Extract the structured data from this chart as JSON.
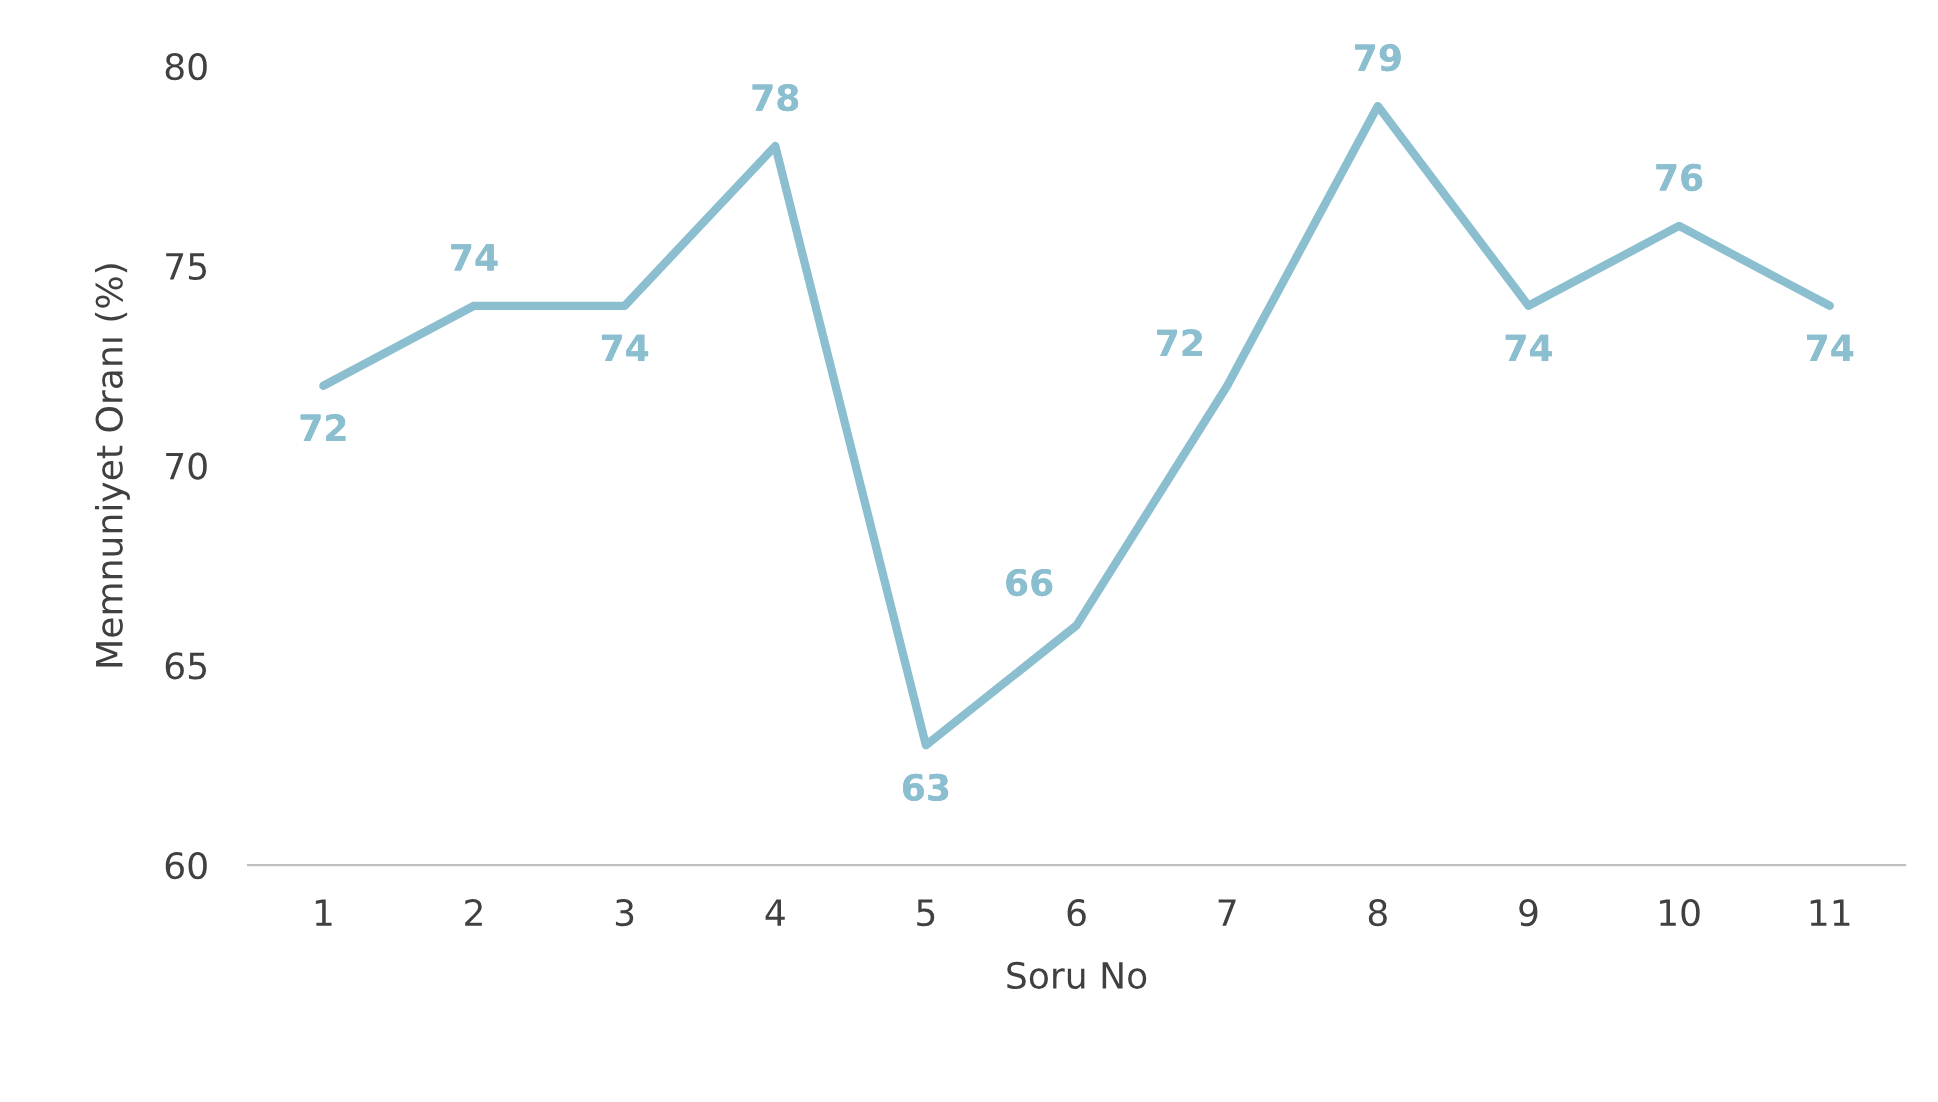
{
  "chart_data": {
    "type": "line",
    "xlabel": "Soru No",
    "ylabel": "Memnuniyet Oranı (%)",
    "categories": [
      "1",
      "2",
      "3",
      "4",
      "5",
      "6",
      "7",
      "8",
      "9",
      "10",
      "11"
    ],
    "series": [
      {
        "color": "#8bbfd0",
        "values": [
          72,
          74,
          74,
          78,
          63,
          66,
          72,
          79,
          74,
          76,
          74
        ]
      }
    ],
    "ylim": [
      60,
      80
    ],
    "yticks": [
      60,
      65,
      70,
      75,
      80
    ],
    "grid": false,
    "legend": false,
    "data_labels": true,
    "marker": "none",
    "line_style": "solid"
  }
}
